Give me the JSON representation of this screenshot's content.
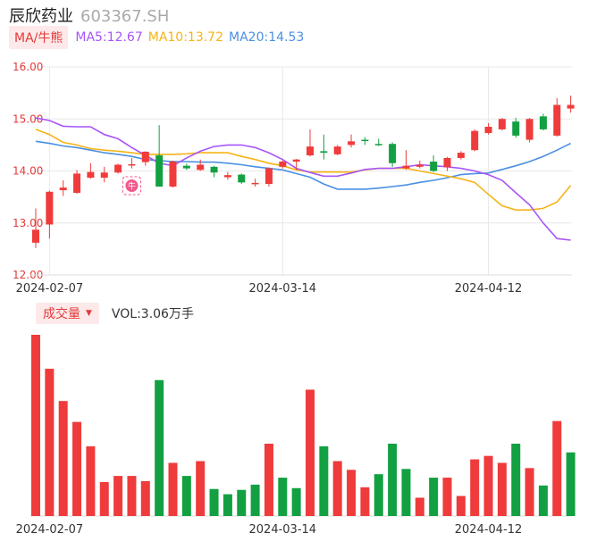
{
  "header": {
    "name": "辰欣药业",
    "code": "603367.SH"
  },
  "ma_legend": {
    "toggle_label": "MA/牛熊",
    "ma5": "MA5:12.67",
    "ma10": "MA10:13.72",
    "ma20": "MA20:14.53"
  },
  "volume_legend": {
    "toggle_label": "成交量",
    "text": "VOL:3.06万手"
  },
  "colors": {
    "up": "#ef3b3b",
    "down": "#13a042",
    "ma5": "#a855f7",
    "ma10": "#f5b416",
    "ma20": "#4a90e2",
    "grid": "#e8e8e8"
  },
  "chart_data": [
    {
      "type": "candlestick",
      "y_tick_labels": [
        "16.00",
        "15.00",
        "14.00",
        "13.00",
        "12.00"
      ],
      "ylim": [
        12.0,
        16.0
      ],
      "x_tick_labels": [
        "2024-02-07",
        "2024-03-14",
        "2024-04-12"
      ],
      "x_tick_index": [
        1,
        18,
        33
      ],
      "candles": [
        {
          "o": 12.62,
          "c": 12.87,
          "h": 13.28,
          "l": 12.52
        },
        {
          "o": 12.97,
          "c": 13.6,
          "h": 13.62,
          "l": 12.7
        },
        {
          "o": 13.63,
          "c": 13.68,
          "h": 13.82,
          "l": 13.52
        },
        {
          "o": 13.58,
          "c": 13.95,
          "h": 14.02,
          "l": 13.56
        },
        {
          "o": 13.87,
          "c": 13.98,
          "h": 14.15,
          "l": 13.85
        },
        {
          "o": 13.87,
          "c": 13.97,
          "h": 14.08,
          "l": 13.78
        },
        {
          "o": 13.97,
          "c": 14.12,
          "h": 14.14,
          "l": 13.95
        },
        {
          "o": 14.12,
          "c": 14.13,
          "h": 14.25,
          "l": 14.05
        },
        {
          "o": 14.17,
          "c": 14.37,
          "h": 14.38,
          "l": 14.1
        },
        {
          "o": 14.3,
          "c": 13.7,
          "h": 14.88,
          "l": 13.7
        },
        {
          "o": 13.7,
          "c": 14.18,
          "h": 14.2,
          "l": 13.68
        },
        {
          "o": 14.1,
          "c": 14.05,
          "h": 14.14,
          "l": 14.02
        },
        {
          "o": 14.02,
          "c": 14.12,
          "h": 14.22,
          "l": 14.0
        },
        {
          "o": 14.08,
          "c": 13.97,
          "h": 14.1,
          "l": 13.88
        },
        {
          "o": 13.88,
          "c": 13.92,
          "h": 13.98,
          "l": 13.83
        },
        {
          "o": 13.93,
          "c": 13.78,
          "h": 13.95,
          "l": 13.75
        },
        {
          "o": 13.75,
          "c": 13.77,
          "h": 13.85,
          "l": 13.7
        },
        {
          "o": 13.75,
          "c": 14.05,
          "h": 14.07,
          "l": 13.7
        },
        {
          "o": 14.08,
          "c": 14.18,
          "h": 14.2,
          "l": 14.05
        },
        {
          "o": 14.18,
          "c": 14.22,
          "h": 14.23,
          "l": 14.02
        },
        {
          "o": 14.3,
          "c": 14.47,
          "h": 14.8,
          "l": 14.28
        },
        {
          "o": 14.38,
          "c": 14.35,
          "h": 14.7,
          "l": 14.22
        },
        {
          "o": 14.32,
          "c": 14.47,
          "h": 14.5,
          "l": 14.3
        },
        {
          "o": 14.5,
          "c": 14.57,
          "h": 14.7,
          "l": 14.45
        },
        {
          "o": 14.6,
          "c": 14.58,
          "h": 14.65,
          "l": 14.5
        },
        {
          "o": 14.52,
          "c": 14.5,
          "h": 14.62,
          "l": 14.48
        },
        {
          "o": 14.52,
          "c": 14.15,
          "h": 14.55,
          "l": 14.08
        },
        {
          "o": 14.05,
          "c": 14.1,
          "h": 14.4,
          "l": 14.02
        },
        {
          "o": 14.08,
          "c": 14.12,
          "h": 14.2,
          "l": 14.05
        },
        {
          "o": 14.18,
          "c": 14.0,
          "h": 14.3,
          "l": 13.98
        },
        {
          "o": 14.07,
          "c": 14.25,
          "h": 14.27,
          "l": 14.0
        },
        {
          "o": 14.25,
          "c": 14.35,
          "h": 14.38,
          "l": 14.22
        },
        {
          "o": 14.4,
          "c": 14.77,
          "h": 14.8,
          "l": 14.38
        },
        {
          "o": 14.73,
          "c": 14.85,
          "h": 14.92,
          "l": 14.7
        },
        {
          "o": 14.8,
          "c": 15.0,
          "h": 15.02,
          "l": 14.78
        },
        {
          "o": 14.95,
          "c": 14.68,
          "h": 15.02,
          "l": 14.64
        },
        {
          "o": 14.6,
          "c": 15.0,
          "h": 15.02,
          "l": 14.55
        },
        {
          "o": 15.05,
          "c": 14.8,
          "h": 15.1,
          "l": 14.78
        },
        {
          "o": 14.68,
          "c": 15.27,
          "h": 15.4,
          "l": 14.66
        },
        {
          "o": 15.2,
          "c": 15.27,
          "h": 15.45,
          "l": 15.12
        }
      ],
      "ma5": [
        15.02,
        14.97,
        14.86,
        14.85,
        14.85,
        14.7,
        14.62,
        14.45,
        14.3,
        14.15,
        14.1,
        14.25,
        14.38,
        14.47,
        14.5,
        14.5,
        14.45,
        14.35,
        14.22,
        14.05,
        13.97,
        13.9,
        13.9,
        13.96,
        14.03,
        14.05,
        14.05,
        14.08,
        14.12,
        14.1,
        14.08,
        14.05,
        14.0,
        13.93,
        13.82,
        13.58,
        13.35,
        13.0,
        12.7,
        12.67
      ],
      "ma10": [
        14.8,
        14.7,
        14.55,
        14.5,
        14.43,
        14.4,
        14.38,
        14.35,
        14.32,
        14.32,
        14.32,
        14.33,
        14.35,
        14.35,
        14.35,
        14.28,
        14.22,
        14.15,
        14.1,
        14.02,
        13.98,
        13.98,
        13.98,
        13.98,
        14.02,
        14.05,
        14.05,
        14.05,
        14.0,
        13.95,
        13.9,
        13.85,
        13.78,
        13.55,
        13.33,
        13.25,
        13.25,
        13.28,
        13.4,
        13.72
      ],
      "ma20": [
        14.57,
        14.53,
        14.48,
        14.45,
        14.4,
        14.35,
        14.32,
        14.28,
        14.22,
        14.2,
        14.18,
        14.18,
        14.17,
        14.17,
        14.15,
        14.12,
        14.08,
        14.05,
        14.02,
        13.95,
        13.88,
        13.75,
        13.65,
        13.65,
        13.65,
        13.67,
        13.7,
        13.73,
        13.78,
        13.82,
        13.87,
        13.93,
        13.95,
        13.96,
        14.03,
        14.1,
        14.18,
        14.28,
        14.4,
        14.53
      ],
      "marker_label": "牛"
    },
    {
      "type": "bar",
      "series": [
        {
          "values": [
            20.8,
            16.9,
            13.2,
            10.8,
            8.0,
            3.9,
            4.6,
            4.6,
            4.0,
            15.6,
            6.1,
            4.6,
            6.3,
            3.1,
            2.5,
            3.0,
            3.6,
            8.3,
            4.4,
            3.2,
            14.5,
            8.0,
            6.3,
            5.3,
            3.3,
            4.8,
            8.3,
            5.4,
            2.1,
            4.4,
            4.4,
            2.3,
            6.5,
            6.9,
            6.1,
            8.3,
            5.5,
            3.5,
            10.9,
            7.3
          ]
        }
      ],
      "up_flags": [
        1,
        1,
        1,
        1,
        1,
        1,
        1,
        1,
        1,
        0,
        1,
        0,
        1,
        0,
        0,
        0,
        0,
        1,
        0,
        0,
        1,
        0,
        1,
        1,
        1,
        0,
        0,
        0,
        1,
        0,
        1,
        1,
        1,
        1,
        1,
        0,
        1,
        0,
        1,
        0
      ],
      "x_tick_labels": [
        "2024-02-07",
        "2024-03-14",
        "2024-04-12"
      ],
      "x_tick_index": [
        1,
        18,
        33
      ]
    }
  ]
}
